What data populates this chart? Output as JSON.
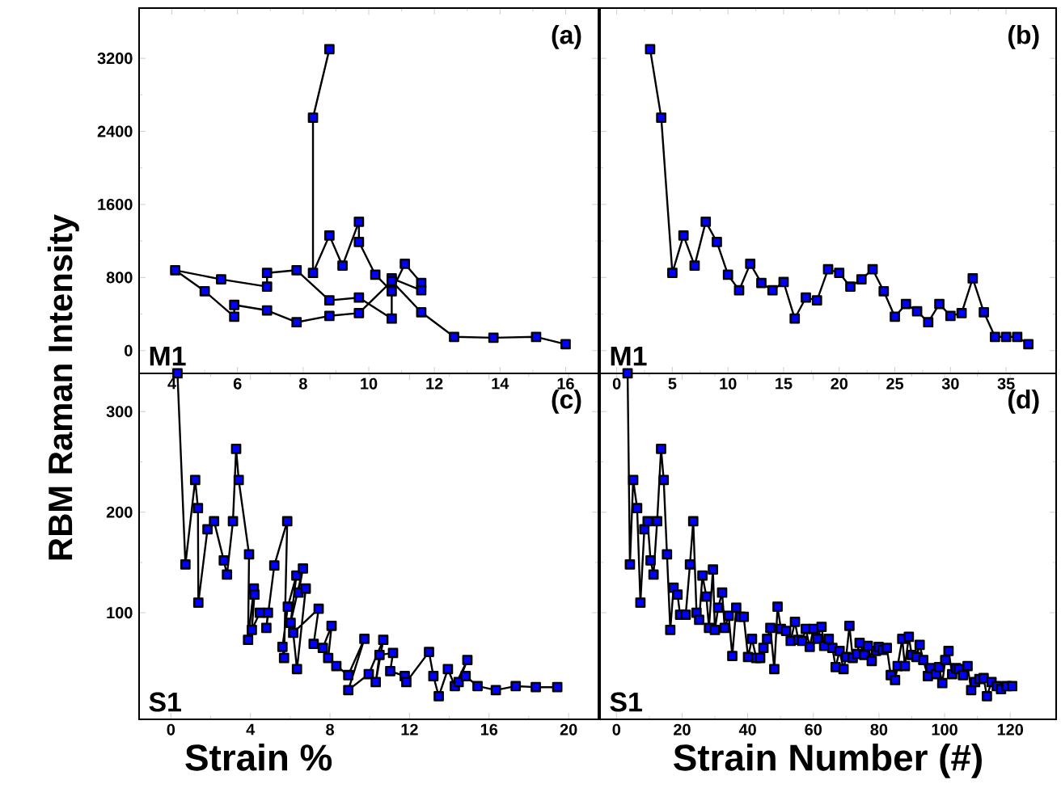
{
  "chart_data": [
    {
      "type": "line",
      "ylabel": "RBM Raman Intensity",
      "annotations": [
        "(a)",
        "M1"
      ],
      "marker": "square",
      "line_style": "solid",
      "color": "#0000ff",
      "x": [
        8.8,
        8.3,
        8.3,
        8.8,
        9.2,
        9.7,
        9.7,
        10.2,
        10.7,
        11.1,
        11.6,
        11.6,
        10.7,
        10.7,
        9.7,
        8.8,
        7.8,
        6.9,
        6.9,
        5.5,
        4.1,
        5.0,
        5.9,
        5.9,
        6.9,
        7.8,
        8.8,
        9.7,
        10.7,
        11.6,
        12.6,
        13.8,
        15.1,
        16.0
      ],
      "values": [
        3300,
        2550,
        850,
        1260,
        930,
        1410,
        1190,
        830,
        650,
        950,
        740,
        660,
        790,
        350,
        580,
        550,
        880,
        850,
        700,
        780,
        880,
        650,
        370,
        500,
        440,
        310,
        380,
        410,
        760,
        420,
        150,
        140,
        150,
        70
      ],
      "xlim": [
        3,
        17
      ],
      "xticks": [
        4,
        6,
        8,
        10,
        12,
        14,
        16
      ],
      "ylim": [
        -250,
        3750
      ],
      "yticks": [
        0,
        800,
        1600,
        2400,
        3200
      ]
    },
    {
      "type": "line",
      "annotations": [
        "(b)",
        "M1"
      ],
      "marker": "square",
      "line_style": "solid",
      "color": "#0000ff",
      "tick_labels": "x",
      "x": [
        3,
        4,
        5,
        6,
        7,
        8,
        9,
        10,
        11,
        12,
        13,
        14,
        15,
        16,
        17,
        18,
        19,
        20,
        21,
        22,
        23,
        24,
        25,
        26,
        27,
        28,
        29,
        30,
        31,
        32,
        33,
        34,
        35,
        36,
        37
      ],
      "values": [
        3300,
        2550,
        850,
        1260,
        930,
        1410,
        1190,
        830,
        660,
        950,
        740,
        660,
        750,
        350,
        580,
        550,
        890,
        850,
        700,
        780,
        890,
        650,
        370,
        510,
        430,
        310,
        510,
        380,
        410,
        790,
        420,
        150,
        150,
        150,
        70
      ],
      "xlim": [
        -1.5,
        39.5
      ],
      "xticks": [
        0,
        5,
        10,
        15,
        20,
        25,
        30,
        35
      ],
      "ylim": [
        -250,
        3750
      ],
      "yticks": [
        0,
        800,
        1600,
        2400,
        3200
      ]
    },
    {
      "type": "line",
      "xlabel": "Strain %",
      "annotations": [
        "(c)",
        "S1"
      ],
      "marker": "square",
      "line_style": "solid",
      "color": "#0000ff",
      "x": [
        0.33,
        0.73,
        1.22,
        1.36,
        1.38,
        1.84,
        2.17,
        2.66,
        2.82,
        3.12,
        3.28,
        3.41,
        3.93,
        3.88,
        4.17,
        4.2,
        4.07,
        4.47,
        4.88,
        4.8,
        5.2,
        5.85,
        5.69,
        5.61,
        5.88,
        6.31,
        6.02,
        6.64,
        6.42,
        6.78,
        6.34,
        6.15,
        7.43,
        7.18,
        7.64,
        8.08,
        7.91,
        8.32,
        8.92,
        9.73,
        8.92,
        9.95,
        10.68,
        10.3,
        10.49,
        11.17,
        11.03,
        11.76,
        11.84,
        12.98,
        13.2,
        13.47,
        13.93,
        14.28,
        14.91,
        14.47,
        14.82,
        15.42,
        16.34,
        17.34,
        18.35,
        19.43
      ],
      "values": [
        338,
        148,
        232,
        204,
        110,
        183,
        191,
        152,
        138,
        191,
        263,
        232,
        158,
        73,
        124,
        118,
        83,
        100,
        100,
        85,
        147,
        191,
        55,
        66,
        106,
        137,
        90,
        144,
        120,
        124,
        44,
        80,
        104,
        69,
        65,
        87,
        55,
        47,
        38,
        74,
        23,
        39,
        73,
        31,
        58,
        60,
        42,
        37,
        31,
        61,
        37,
        17,
        44,
        27,
        53,
        31,
        37,
        27,
        23,
        27,
        26,
        26
      ],
      "xlim": [
        -1.6,
        21.5
      ],
      "xticks": [
        0,
        4,
        8,
        12,
        16,
        20
      ],
      "ylim": [
        -6,
        338
      ],
      "yticks": [
        100,
        200,
        300
      ]
    },
    {
      "type": "line",
      "xlabel": "Strain Number (#)",
      "annotations": [
        "(d)",
        "S1"
      ],
      "marker": "square",
      "line_style": "solid",
      "color": "#0000ff",
      "tick_labels": "x",
      "x": [
        3.4,
        4.1,
        5.1,
        6.3,
        7.3,
        8.5,
        9.5,
        10.4,
        11.3,
        12.4,
        13.6,
        14.4,
        15.4,
        16.4,
        17.4,
        18.6,
        19.4,
        21.1,
        22.4,
        23.4,
        24.4,
        25.2,
        26.2,
        27.4,
        28.2,
        29.4,
        30.0,
        31.0,
        32.2,
        33.0,
        34.2,
        35.3,
        36.5,
        37.8,
        38.8,
        40.1,
        41.3,
        42.6,
        43.8,
        44.8,
        45.9,
        46.9,
        48.1,
        49.1,
        50.1,
        51.7,
        53.1,
        54.4,
        55.4,
        56.6,
        57.7,
        58.9,
        60.0,
        61.2,
        62.5,
        63.3,
        64.7,
        65.8,
        66.8,
        68.0,
        69.2,
        70.0,
        71.0,
        72.0,
        73.3,
        74.1,
        75.5,
        76.6,
        77.8,
        79.1,
        79.9,
        81.1,
        82.4,
        83.6,
        84.9,
        85.7,
        87.1,
        87.9,
        89.1,
        90.0,
        91.4,
        92.4,
        93.5,
        94.9,
        95.7,
        97.3,
        98.3,
        99.3,
        100.2,
        101.2,
        102.3,
        103.5,
        104.3,
        105.6,
        107.0,
        108.1,
        109.3,
        110.6,
        111.9,
        112.9,
        114.3,
        115.9,
        117.2,
        118.9,
        120.6
      ],
      "values": [
        338,
        148,
        232,
        204,
        110,
        183,
        191,
        152,
        138,
        191,
        263,
        232,
        158,
        83,
        125,
        118,
        98,
        98,
        148,
        191,
        100,
        93,
        137,
        116,
        85,
        143,
        83,
        105,
        120,
        85,
        97,
        57,
        105,
        96,
        96,
        56,
        74,
        55,
        55,
        65,
        74,
        85,
        44,
        106,
        84,
        82,
        72,
        91,
        73,
        72,
        84,
        66,
        84,
        74,
        86,
        67,
        74,
        65,
        46,
        62,
        44,
        56,
        87,
        55,
        59,
        70,
        58,
        67,
        52,
        62,
        66,
        63,
        65,
        38,
        33,
        47,
        74,
        47,
        76,
        58,
        56,
        68,
        53,
        37,
        45,
        39,
        46,
        30,
        53,
        62,
        39,
        45,
        44,
        38,
        47,
        23,
        31,
        34,
        35,
        17,
        31,
        27,
        24,
        27,
        27
      ],
      "xlim": [
        -5,
        134
      ],
      "xticks": [
        0,
        20,
        40,
        60,
        80,
        100,
        120
      ],
      "ylim": [
        -6,
        338
      ],
      "yticks": [
        100,
        200,
        300
      ]
    }
  ]
}
